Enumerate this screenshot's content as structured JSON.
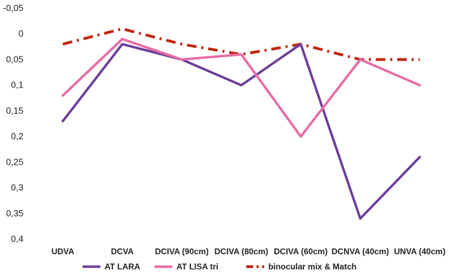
{
  "chart_data": {
    "type": "line",
    "title": "",
    "xlabel": "",
    "ylabel": "",
    "categories": [
      "UDVA",
      "DCVA",
      "DCIVA (90cm)",
      "DCIVA (80cm)",
      "DCIVA (60cm)",
      "DCNVA (40cm)",
      "UNVA (40cm)"
    ],
    "ylim": [
      -0.05,
      0.4
    ],
    "y_inverted": true,
    "y_ticks": [
      -0.05,
      0,
      0.05,
      0.1,
      0.15,
      0.2,
      0.25,
      0.3,
      0.35,
      0.4
    ],
    "y_tick_labels": [
      "-0,05",
      "0",
      "0,05",
      "0,1",
      "0,15",
      "0,2",
      "0,25",
      "0,3",
      "0,35",
      "0,4"
    ],
    "grid": false,
    "legend_position": "bottom",
    "series": [
      {
        "name": "AT LARA",
        "color": "#6a3d9a",
        "style": "solid",
        "values": [
          0.17,
          0.02,
          0.05,
          0.1,
          0.02,
          0.36,
          0.24
        ]
      },
      {
        "name": "AT LISA tri",
        "color": "#e86aa6",
        "style": "solid",
        "values": [
          0.12,
          0.01,
          0.05,
          0.04,
          0.2,
          0.05,
          0.1
        ]
      },
      {
        "name": "binocular mix & Match",
        "color": "#c0260e",
        "style": "dashdot",
        "values": [
          0.02,
          -0.01,
          0.02,
          0.04,
          0.02,
          0.05,
          0.05
        ]
      }
    ]
  }
}
